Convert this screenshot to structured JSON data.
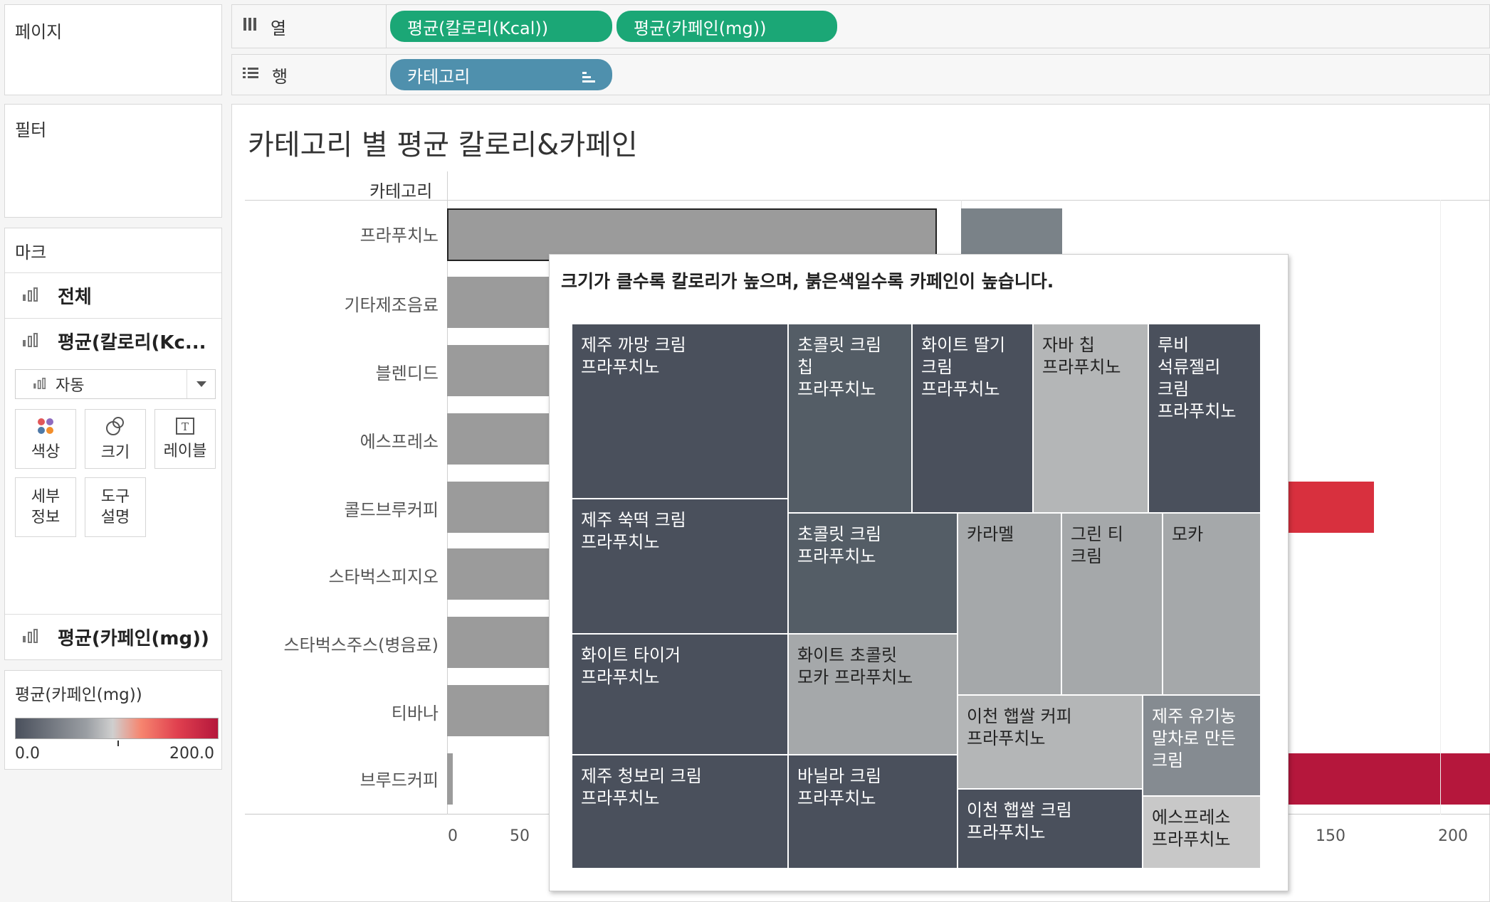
{
  "pages_panel": {
    "title": "페이지"
  },
  "filters_panel": {
    "title": "필터"
  },
  "marks": {
    "title": "마크",
    "cards": [
      "전체",
      "평균(칼로리(Kc...",
      "평균(카페인(mg))"
    ],
    "type_select": "자동",
    "buttons": [
      {
        "label": "색상",
        "icon": "color-icon"
      },
      {
        "label": "크기",
        "icon": "size-icon"
      },
      {
        "label": "레이블",
        "icon": "label-icon"
      },
      {
        "line1": "세부",
        "line2": "정보"
      },
      {
        "line1": "도구",
        "line2": "설명"
      }
    ]
  },
  "legend": {
    "title": "평균(카페인(mg))",
    "min": "0.0",
    "max": "200.0",
    "colors": [
      "#4a505c",
      "#c9c9c9",
      "#f6856f",
      "#b5173c"
    ]
  },
  "columns_shelf": {
    "label": "열",
    "pills": [
      "평균(칼로리(Kcal))",
      "평균(카페인(mg))"
    ]
  },
  "rows_shelf": {
    "label": "행",
    "pills": [
      "카테고리"
    ]
  },
  "view": {
    "title": "카테고리 별 평균 칼로리&카페인",
    "row_header": "카테고리",
    "categories": [
      "프라푸치노",
      "기타제조음료",
      "블렌디드",
      "에스프레소",
      "콜드브루커피",
      "스타벅스피지오",
      "스타벅스주스(병음료)",
      "티바나",
      "브루드커피"
    ],
    "x_ticks_left": [
      "0",
      "50"
    ],
    "x_ticks_right": [
      "150",
      "200"
    ]
  },
  "chart_data": {
    "type": "bar",
    "categories": [
      "프라푸치노",
      "기타제조음료",
      "블렌디드",
      "에스프레소",
      "콜드브루커피",
      "스타벅스피지오",
      "스타벅스주스(병음료)",
      "티바나",
      "브루드커피"
    ],
    "series": [
      {
        "name": "평균(칼로리(Kcal))",
        "values": [
          400,
          250,
          200,
          200,
          200,
          200,
          200,
          200,
          5
        ],
        "colors": [
          "#9b9b9b"
        ]
      },
      {
        "name": "평균(카페인(mg))",
        "values": [
          40,
          null,
          null,
          null,
          175,
          null,
          null,
          null,
          200
        ],
        "colors": [
          "#7a8288",
          "#d8303e",
          "#b5173c"
        ]
      }
    ],
    "caffeine_axis_ticks": [
      150,
      200
    ],
    "calorie_axis_ticks": [
      0,
      50
    ]
  },
  "tooltip": {
    "title": "크기가 클수록 칼로리가 높으며, 붉은색일수록 카페인이 높습니다.",
    "treemap": [
      {
        "lines": [
          "제주 까망 크림",
          "프라푸치노"
        ],
        "color": "#4a505c",
        "light": false
      },
      {
        "lines": [
          "초콜릿 크림",
          "칩",
          "프라푸치노"
        ],
        "color": "#545d66",
        "light": false
      },
      {
        "lines": [
          "화이트 딸기",
          "크림",
          "프라푸치노"
        ],
        "color": "#4a505c",
        "light": false
      },
      {
        "lines": [
          "자바 칩",
          "프라푸치노"
        ],
        "color": "#b4b6b7",
        "light": true
      },
      {
        "lines": [
          "루비",
          "석류젤리",
          "크림",
          "프라푸치노"
        ],
        "color": "#4a505c",
        "light": false
      },
      {
        "lines": [
          "제주 쑥떡 크림",
          "프라푸치노"
        ],
        "color": "#4a505c",
        "light": false
      },
      {
        "lines": [
          "초콜릿 크림",
          "프라푸치노"
        ],
        "color": "#545d66",
        "light": false
      },
      {
        "lines": [
          "카라멜"
        ],
        "color": "#a5a8aa",
        "light": true
      },
      {
        "lines": [
          "그린 티",
          "크림"
        ],
        "color": "#a5a8aa",
        "light": true
      },
      {
        "lines": [
          "모카"
        ],
        "color": "#a5a8aa",
        "light": true
      },
      {
        "lines": [
          "화이트 타이거",
          "프라푸치노"
        ],
        "color": "#4a505c",
        "light": false
      },
      {
        "lines": [
          "화이트 초콜릿",
          "모카 프라푸치노"
        ],
        "color": "#a5a8aa",
        "light": true
      },
      {
        "lines": [
          "이천 햅쌀 커피",
          "프라푸치노"
        ],
        "color": "#b4b6b7",
        "light": true
      },
      {
        "lines": [
          "제주 유기농",
          "말차로 만든",
          "크림"
        ],
        "color": "#858b91",
        "light": false
      },
      {
        "lines": [
          "제주 청보리 크림",
          "프라푸치노"
        ],
        "color": "#4a505c",
        "light": false
      },
      {
        "lines": [
          "바닐라 크림",
          "프라푸치노"
        ],
        "color": "#4a505c",
        "light": false
      },
      {
        "lines": [
          "이천 햅쌀 크림",
          "프라푸치노"
        ],
        "color": "#4a505c",
        "light": false
      },
      {
        "lines": [
          "에스프레소",
          "프라푸치노"
        ],
        "color": "#c8c8c8",
        "light": true
      }
    ]
  }
}
